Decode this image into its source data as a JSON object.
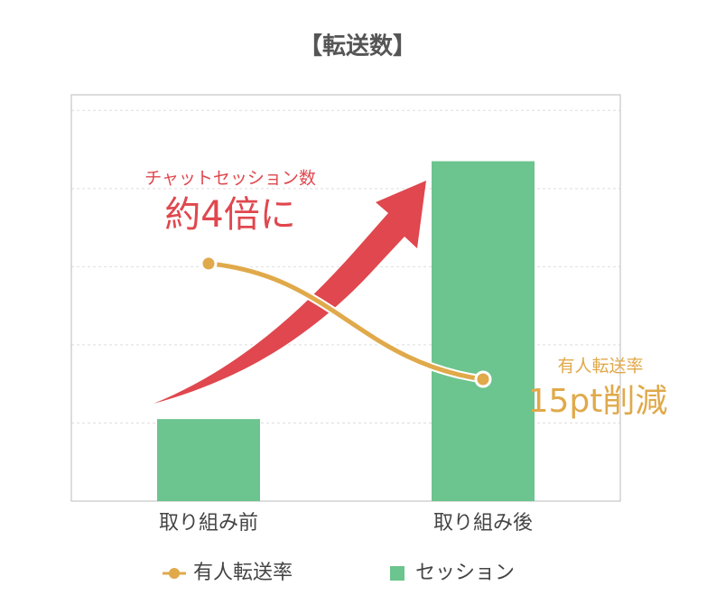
{
  "chart_data": {
    "type": "bar",
    "title": "【転送数】",
    "categories": [
      "取り組み前",
      "取り組み後"
    ],
    "series": [
      {
        "name": "セッション",
        "type": "bar",
        "color": "#6cc48e",
        "values": [
          1.05,
          4.35
        ]
      },
      {
        "name": "有人転送率",
        "type": "line",
        "color": "#e0a94a",
        "values": [
          3.04,
          1.56
        ]
      }
    ],
    "ylim": [
      0,
      5.2
    ],
    "yticks": [
      1,
      2,
      3,
      4,
      5
    ],
    "grid": true,
    "annotations": [
      "チャットセッション数",
      "約4倍に",
      "有人転送率",
      "15pt削減"
    ],
    "legend": "bottom"
  }
}
